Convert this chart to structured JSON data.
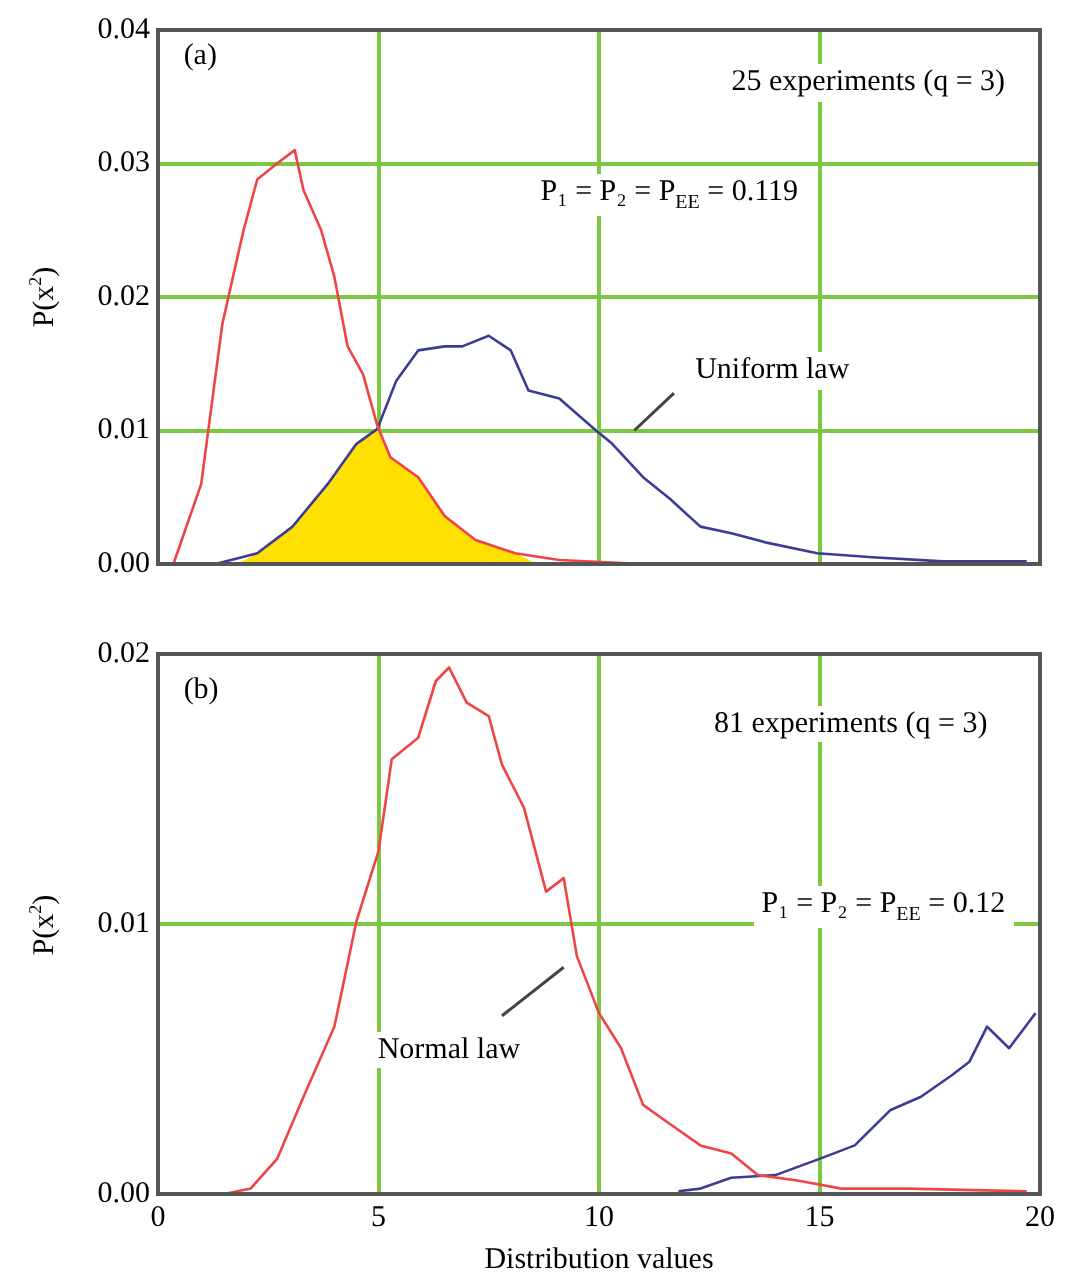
{
  "chart_data": [
    {
      "type": "line",
      "ylabel": "P(x$^{2}$)",
      "xlim": [
        0,
        20
      ],
      "xticks": [
        0,
        5,
        10,
        15,
        20
      ],
      "ylim": [
        0,
        0.04
      ],
      "yticks": [
        {
          "value": 0,
          "label": "0.00"
        },
        {
          "value": 0.01,
          "label": "0.01"
        },
        {
          "value": 0.02,
          "label": "0.02"
        },
        {
          "value": 0.03,
          "label": "0.03"
        },
        {
          "value": 0.04,
          "label": "0.04"
        }
      ],
      "grid": true,
      "tick_labels": "y",
      "marker": "none",
      "line_style": "solid",
      "annotations": [
        "(a)",
        "25 experiments (q = 3)",
        "P₁ = P₂ = P$_{EE}$ = 0.119",
        "Uniform law"
      ],
      "series": [
        {
          "type": "area",
          "color": "#ffe000",
          "x": [
            1.8,
            2.25,
            3.05,
            3.85,
            4.5,
            4.97,
            5.27,
            5.9,
            6.5,
            7.2,
            8.1,
            8.6
          ],
          "values": [
            0,
            0.0008,
            0.0028,
            0.006,
            0.009,
            0.0101,
            0.008,
            0.0065,
            0.0036,
            0.0018,
            0.0008,
            0
          ]
        },
        {
          "color": "#ee4444",
          "x": [
            0.35,
            0.98,
            1.46,
            1.94,
            2.25,
            2.7,
            3.1,
            3.3,
            3.7,
            4.0,
            4.3,
            4.65,
            4.97,
            5.27,
            5.9,
            6.5,
            7.2,
            8.1,
            9.1,
            11
          ],
          "values": [
            0,
            0.006,
            0.018,
            0.025,
            0.0288,
            0.03,
            0.031,
            0.028,
            0.025,
            0.0215,
            0.0163,
            0.0142,
            0.0104,
            0.008,
            0.0065,
            0.0036,
            0.0018,
            0.0008,
            0.0003,
            0
          ]
        },
        {
          "color": "#3c3c96",
          "x": [
            1.3,
            2.25,
            3.05,
            3.85,
            4.5,
            4.97,
            5.4,
            5.9,
            6.5,
            6.9,
            7.5,
            8.0,
            8.4,
            9.1,
            9.9,
            10.3,
            11.0,
            11.6,
            12.3,
            13.0,
            13.8,
            14.95,
            16.2,
            17.8,
            19.7
          ],
          "values": [
            0,
            0.0008,
            0.0028,
            0.006,
            0.009,
            0.0101,
            0.0137,
            0.016,
            0.0163,
            0.0163,
            0.0171,
            0.016,
            0.013,
            0.0124,
            0.0101,
            0.009,
            0.0065,
            0.0049,
            0.0028,
            0.0023,
            0.0016,
            0.0008,
            0.0005,
            0.0002,
            0.0002
          ]
        }
      ]
    },
    {
      "type": "line",
      "ylabel": "P(x$^{2}$)",
      "xlabel": "Distribution values",
      "xlim": [
        0,
        20
      ],
      "xticks": [
        0,
        5,
        10,
        15,
        20
      ],
      "ylim": [
        0,
        0.02
      ],
      "yticks": [
        {
          "value": 0,
          "label": "0.00"
        },
        {
          "value": 0.01,
          "label": "0.01"
        },
        {
          "value": 0.02,
          "label": "0.02"
        }
      ],
      "grid": true,
      "marker": "none",
      "line_style": "solid",
      "annotations": [
        "(b)",
        "81 experiments (q = 3)",
        "P₁ = P₂ = P$_{EE}$ = 0.12",
        "Normal law"
      ],
      "series": [
        {
          "color": "#ee4444",
          "x": [
            1.5,
            2.1,
            2.7,
            3.3,
            4.0,
            4.5,
            5.0,
            5.3,
            5.9,
            6.3,
            6.6,
            7.0,
            7.5,
            7.8,
            8.3,
            8.8,
            9.2,
            9.5,
            10.0,
            10.5,
            11.0,
            11.6,
            12.3,
            13.0,
            13.6,
            14.5,
            15.5,
            17.0,
            19.7
          ],
          "values": [
            0,
            0.0002,
            0.0013,
            0.0036,
            0.0062,
            0.0101,
            0.0127,
            0.0161,
            0.0169,
            0.019,
            0.0195,
            0.0182,
            0.0177,
            0.0159,
            0.0143,
            0.0112,
            0.0117,
            0.0088,
            0.0067,
            0.0054,
            0.0033,
            0.0026,
            0.0018,
            0.0015,
            0.0007,
            0.0005,
            0.0002,
            0.0002,
            0.0001
          ]
        },
        {
          "color": "#3c3c96",
          "x": [
            11.8,
            12.3,
            13.0,
            14.0,
            15.0,
            15.8,
            16.6,
            17.3,
            18.0,
            18.4,
            18.8,
            19.3,
            19.9
          ],
          "values": [
            0.0001,
            0.0002,
            0.0006,
            0.0007,
            0.0013,
            0.0018,
            0.0031,
            0.0036,
            0.0044,
            0.0049,
            0.0062,
            0.0054,
            0.0067
          ]
        }
      ]
    }
  ]
}
